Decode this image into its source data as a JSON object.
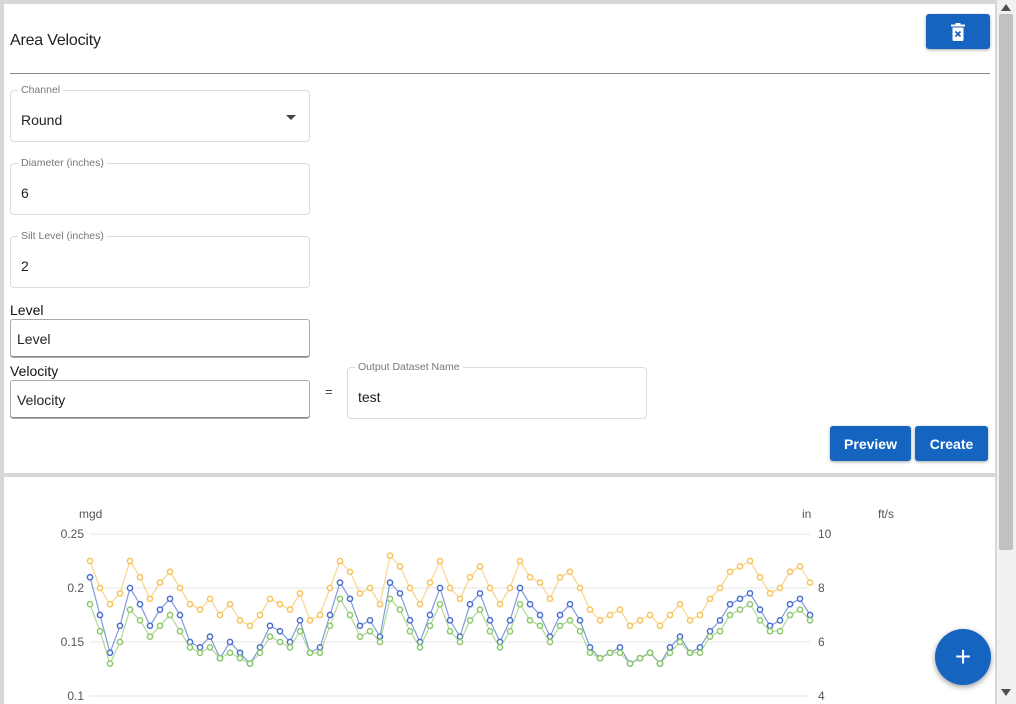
{
  "form": {
    "title": "Area Velocity",
    "channel": {
      "label": "Channel",
      "value": "Round"
    },
    "diameter": {
      "label": "Diameter (inches)",
      "value": "6"
    },
    "silt": {
      "label": "Silt Level (inches)",
      "value": "2"
    },
    "level": {
      "label": "Level",
      "value": "Level"
    },
    "velocity": {
      "label": "Velocity",
      "value": "Velocity"
    },
    "equals": "=",
    "output": {
      "label": "Output Dataset Name",
      "value": "test"
    },
    "preview_label": "Preview",
    "create_label": "Create",
    "accent": "#1565c0"
  },
  "fab": {
    "label": "+"
  },
  "icons": {
    "delete": "delete-icon",
    "add": "plus-icon"
  },
  "chart_data": {
    "type": "scatter",
    "left_axis": {
      "unit": "mgd",
      "ticks": [
        "0.25",
        "0.2",
        "0.15",
        "0.1"
      ],
      "ylim": [
        0.1,
        0.25
      ]
    },
    "right_axis": {
      "unit": "in",
      "ticks": [
        "10",
        "8",
        "6",
        "4"
      ],
      "ylim": [
        4,
        10
      ]
    },
    "right_axis_2": {
      "unit": "ft/s"
    },
    "grid": true,
    "series": [
      {
        "color": "#f7c35c",
        "axis": "left",
        "values": [
          0.225,
          0.2,
          0.185,
          0.195,
          0.225,
          0.21,
          0.19,
          0.205,
          0.215,
          0.2,
          0.185,
          0.18,
          0.19,
          0.175,
          0.185,
          0.17,
          0.165,
          0.175,
          0.19,
          0.185,
          0.18,
          0.195,
          0.17,
          0.175,
          0.2,
          0.225,
          0.215,
          0.195,
          0.2,
          0.185,
          0.23,
          0.22,
          0.2,
          0.185,
          0.205,
          0.225,
          0.2,
          0.19,
          0.21,
          0.22,
          0.2,
          0.185,
          0.2,
          0.225,
          0.21,
          0.205,
          0.19,
          0.21,
          0.215,
          0.2,
          0.18,
          0.17,
          0.175,
          0.18,
          0.165,
          0.17,
          0.175,
          0.165,
          0.175,
          0.185,
          0.17,
          0.175,
          0.19,
          0.2,
          0.215,
          0.22,
          0.225,
          0.21,
          0.195,
          0.2,
          0.215,
          0.22,
          0.205
        ]
      },
      {
        "color": "#4a6fcf",
        "axis": "left",
        "values": [
          0.21,
          0.175,
          0.14,
          0.165,
          0.2,
          0.185,
          0.165,
          0.18,
          0.19,
          0.175,
          0.15,
          0.145,
          0.155,
          0.135,
          0.15,
          0.14,
          0.13,
          0.145,
          0.165,
          0.16,
          0.15,
          0.17,
          0.14,
          0.145,
          0.175,
          0.205,
          0.19,
          0.165,
          0.17,
          0.155,
          0.205,
          0.195,
          0.17,
          0.15,
          0.175,
          0.2,
          0.17,
          0.155,
          0.185,
          0.195,
          0.17,
          0.15,
          0.17,
          0.2,
          0.185,
          0.175,
          0.155,
          0.175,
          0.185,
          0.17,
          0.145,
          0.135,
          0.14,
          0.145,
          0.13,
          0.135,
          0.14,
          0.13,
          0.145,
          0.155,
          0.14,
          0.145,
          0.16,
          0.17,
          0.185,
          0.19,
          0.195,
          0.18,
          0.165,
          0.17,
          0.185,
          0.19,
          0.175
        ]
      },
      {
        "color": "#8dc96a",
        "axis": "left",
        "values": [
          0.185,
          0.16,
          0.13,
          0.15,
          0.18,
          0.17,
          0.155,
          0.165,
          0.175,
          0.16,
          0.145,
          0.14,
          0.145,
          0.135,
          0.14,
          0.135,
          0.13,
          0.14,
          0.155,
          0.15,
          0.145,
          0.16,
          0.14,
          0.14,
          0.165,
          0.19,
          0.175,
          0.155,
          0.16,
          0.15,
          0.19,
          0.18,
          0.16,
          0.145,
          0.165,
          0.185,
          0.16,
          0.15,
          0.17,
          0.18,
          0.16,
          0.145,
          0.16,
          0.185,
          0.17,
          0.165,
          0.15,
          0.165,
          0.17,
          0.16,
          0.14,
          0.135,
          0.14,
          0.14,
          0.13,
          0.135,
          0.14,
          0.13,
          0.14,
          0.15,
          0.14,
          0.14,
          0.155,
          0.16,
          0.175,
          0.18,
          0.185,
          0.17,
          0.16,
          0.16,
          0.175,
          0.18,
          0.17
        ]
      }
    ]
  }
}
